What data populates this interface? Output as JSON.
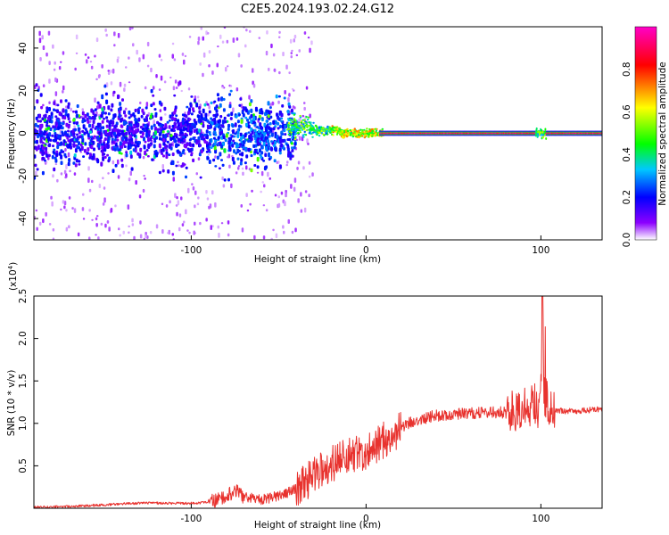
{
  "title": "C2E5.2024.193.02.24.G12",
  "chart_data": [
    {
      "type": "heatmap",
      "xlabel": "Height of straight line (km)",
      "ylabel": "Frequency (Hz)",
      "xlim": [
        -190,
        135
      ],
      "ylim": [
        -50,
        50
      ],
      "xticks": [
        -100,
        0,
        100
      ],
      "yticks": [
        -40,
        -20,
        0,
        20,
        40
      ],
      "colorbar": {
        "label": "Normalized spectral amplitude",
        "range": [
          0,
          1
        ],
        "ticks": [
          "0.0",
          "0.2",
          "0.4",
          "0.6",
          "0.8"
        ],
        "colors": [
          "#ffffff",
          "#8c00ff",
          "#0000ff",
          "#00c8ff",
          "#00ff00",
          "#ffff00",
          "#ff0000",
          "#ff00c8"
        ]
      },
      "regions": [
        {
          "x_range": [
            -190,
            -40
          ],
          "description": "broadband scattered energy",
          "freq_spread_hz": 10,
          "amplitude": [
            0.1,
            0.4
          ]
        },
        {
          "x_range": [
            -40,
            10
          ],
          "description": "narrowing band near 0 Hz",
          "freq_spread_hz": 2,
          "amplitude": [
            0.4,
            0.8
          ]
        },
        {
          "x_range": [
            10,
            135
          ],
          "description": "narrow band at 0 Hz",
          "freq_spread_hz": 1,
          "amplitude": [
            0.8,
            1.0
          ]
        }
      ]
    },
    {
      "type": "line",
      "xlabel": "Height of straight line (km)",
      "ylabel": "SNR (10 * v/v)",
      "yscale_label": "(x10",
      "yscale_exp": "4",
      "yscale_close": ")",
      "xlim": [
        -190,
        135
      ],
      "ylim": [
        0,
        25000
      ],
      "xticks": [
        -100,
        0,
        100
      ],
      "yticks": [
        "0.5",
        "1.0",
        "1.5",
        "2.0",
        "2.5"
      ],
      "ytick_values": [
        5000,
        10000,
        15000,
        20000,
        25000
      ],
      "color": "#e8322e",
      "series": [
        {
          "x": [
            -190,
            -170,
            -150,
            -130,
            -110,
            -95,
            -85,
            -80,
            -75,
            -70,
            -65,
            -60,
            -55,
            -50,
            -45,
            -40,
            -35,
            -30,
            -25,
            -20,
            -15,
            -10,
            -5,
            0,
            5,
            10,
            15,
            20,
            25,
            30,
            40,
            50,
            60,
            70,
            80,
            85,
            88,
            90,
            92,
            94,
            96,
            98,
            100,
            101,
            102,
            103,
            104,
            106,
            110,
            120,
            135
          ],
          "y": [
            100,
            200,
            400,
            600,
            600,
            600,
            900,
            1600,
            2000,
            1400,
            1200,
            1000,
            1200,
            1500,
            1800,
            2400,
            3000,
            3800,
            4600,
            5200,
            5700,
            6100,
            6400,
            6700,
            7400,
            8000,
            8700,
            9500,
            10100,
            10500,
            10900,
            11100,
            11200,
            11300,
            11300,
            11600,
            12000,
            11000,
            12600,
            11500,
            13000,
            11800,
            14000,
            26000,
            9000,
            14500,
            11800,
            11600,
            11500,
            11400,
            11700
          ]
        }
      ]
    }
  ]
}
